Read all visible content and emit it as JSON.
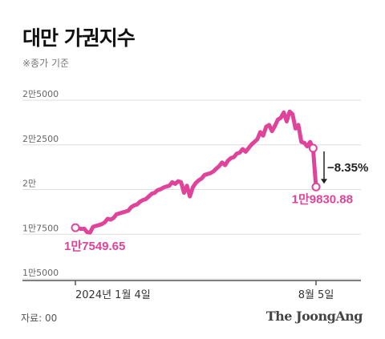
{
  "title": "대만 가권지수",
  "subtitle": "※종가 기준",
  "source": "자료: 00",
  "logo": "The JoongAng",
  "colors": {
    "line": "#e0449a",
    "grid": "#dddddd",
    "axis": "#555555",
    "change": "#222222"
  },
  "chart_data": {
    "type": "line",
    "y_ticks": [
      {
        "value": 15000,
        "label": "1만5000"
      },
      {
        "value": 17500,
        "label": "1만7500"
      },
      {
        "value": 20000,
        "label": "2만"
      },
      {
        "value": 22500,
        "label": "2만2500"
      },
      {
        "value": 25000,
        "label": "2만5000"
      }
    ],
    "ylim": [
      15000,
      25000
    ],
    "x_labels": [
      {
        "pos": 0,
        "label": "2024년 1월 4일"
      },
      {
        "pos": 1,
        "label": "8월 5일"
      }
    ],
    "series": [
      {
        "values": [
          17550,
          17520,
          17480,
          17500,
          17300,
          17280,
          17600,
          17650,
          17700,
          17750,
          17850,
          18050,
          18000,
          18100,
          18300,
          18350,
          18400,
          18450,
          18500,
          18700,
          18800,
          18850,
          19000,
          19100,
          19150,
          19300,
          19450,
          19500,
          19650,
          19700,
          19800,
          19850,
          19900,
          20100,
          20000,
          20150,
          20100,
          19500,
          19900,
          19300,
          19800,
          20050,
          20200,
          20300,
          20500,
          20550,
          20600,
          20700,
          20850,
          21000,
          21200,
          21050,
          21300,
          21450,
          21500,
          21700,
          21750,
          21950,
          21800,
          22000,
          22200,
          22350,
          22500,
          22900,
          22700,
          23200,
          23300,
          22950,
          23250,
          23600,
          23700,
          24000,
          23500,
          24050,
          23900,
          23100,
          23300,
          22350,
          22300,
          22100,
          22350,
          22000,
          19831
        ]
      }
    ],
    "annotations": [
      {
        "text": "1만7549.65",
        "value": 17549.65
      },
      {
        "text": "1만9830.88",
        "value": 19830.88
      },
      {
        "text": "−8.35%",
        "value": -8.35
      }
    ]
  }
}
